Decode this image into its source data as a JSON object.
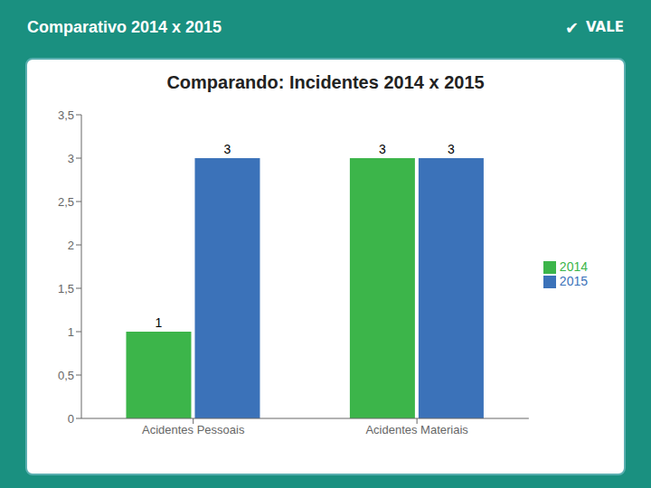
{
  "chart_data": {
    "type": "bar",
    "title": "Comparando: Incidentes 2014 x 2015",
    "subtitle": "Comparativo 2014 x 2015",
    "annotations": [
      {
        "text": "✔"
      },
      {
        "text": "VALE"
      }
    ],
    "categories": [
      "Acidentes Pessoais",
      "Acidentes Materiais"
    ],
    "series": [
      {
        "name": "2014",
        "color": "#3cb54a",
        "values": [
          1,
          3
        ]
      },
      {
        "name": "2015",
        "color": "#3b72b9",
        "values": [
          3,
          3
        ]
      }
    ],
    "ylim": [
      0,
      3.5
    ],
    "yticks": [
      0,
      {
        "value": 0.5,
        "label": "0,5"
      },
      1,
      {
        "value": 1.5,
        "label": "1,5"
      },
      2,
      {
        "value": 2.5,
        "label": "2,5"
      },
      3,
      {
        "value": 3.5,
        "label": "3,5"
      }
    ],
    "grid": false,
    "legend": "right",
    "data_labels": true
  }
}
